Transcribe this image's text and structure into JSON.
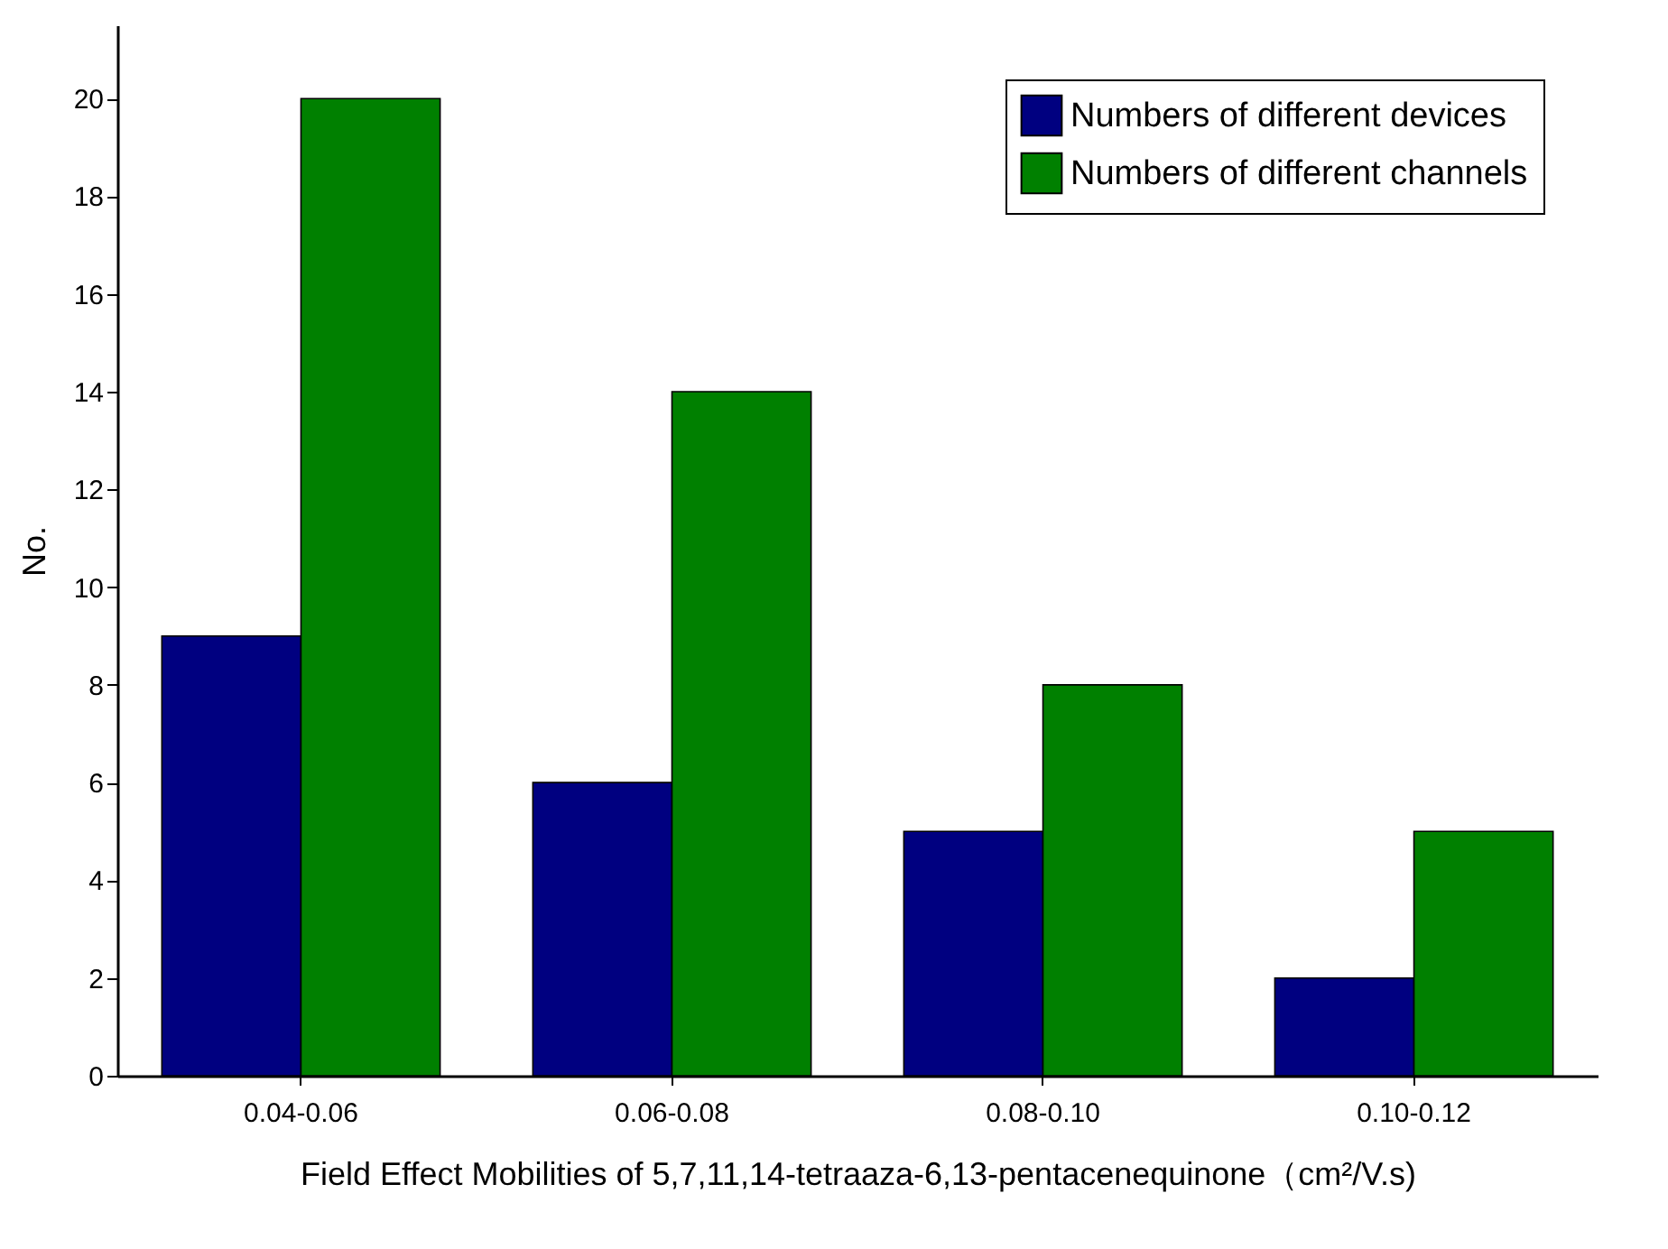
{
  "chart_data": {
    "type": "bar",
    "xlabel": "Field Effect Mobilities of 5,7,11,14-tetraaza-6,13-pentacenequinone（cm²/V.s)",
    "ylabel": "No.",
    "categories": [
      "0.04-0.06",
      "0.06-0.08",
      "0.08-0.10",
      "0.10-0.12"
    ],
    "series": [
      {
        "name": "Numbers of different devices",
        "color": "#000080",
        "values": [
          9,
          6,
          5,
          2
        ]
      },
      {
        "name": "Numbers of different channels",
        "color": "#008000",
        "values": [
          20,
          14,
          8,
          5
        ]
      }
    ],
    "ylim": [
      0,
      21.5
    ],
    "yticks": [
      0,
      2,
      4,
      6,
      8,
      10,
      12,
      14,
      16,
      18,
      20
    ],
    "grid": false,
    "legend": "top right"
  }
}
